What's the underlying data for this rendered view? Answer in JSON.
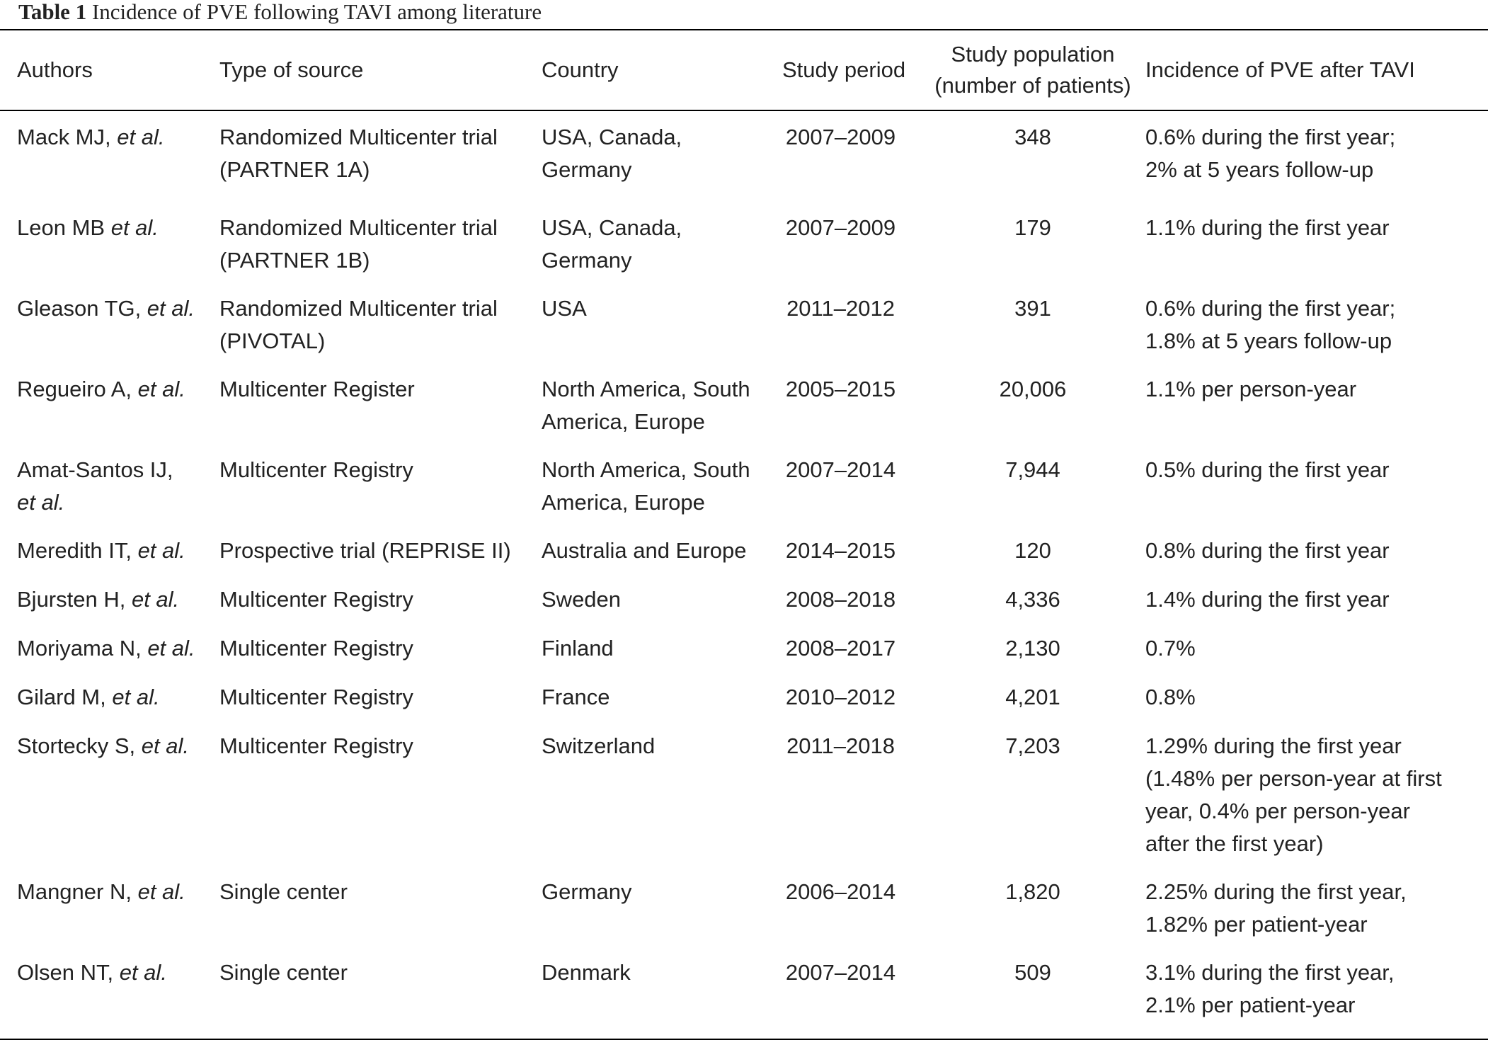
{
  "caption": {
    "label": "Table 1",
    "text": "Incidence of PVE following TAVI among literature"
  },
  "headers": {
    "authors": "Authors",
    "type": "Type of source",
    "country": "Country",
    "period": "Study period",
    "population_line1": "Study population",
    "population_line2": "(number of patients)",
    "incidence": "Incidence of PVE after TAVI"
  },
  "rows": [
    {
      "author": "Mack MJ, ",
      "etal": "et al.",
      "type": [
        "Randomized Multicenter trial",
        "(PARTNER 1A)"
      ],
      "country": [
        "USA, Canada,",
        "Germany"
      ],
      "period": "2007–2009",
      "population": "348",
      "incidence": [
        "0.6% during the first year;",
        "2% at 5 years follow-up"
      ]
    },
    {
      "author": "Leon MB ",
      "etal": "et al.",
      "type": [
        "Randomized Multicenter trial",
        "(PARTNER 1B)"
      ],
      "country": [
        "USA, Canada,",
        "Germany"
      ],
      "period": "2007–2009",
      "population": "179",
      "incidence": [
        "1.1% during the first year"
      ]
    },
    {
      "author": "Gleason TG, ",
      "etal": "et al.",
      "type": [
        "Randomized Multicenter trial",
        "(PIVOTAL)"
      ],
      "country": [
        "USA"
      ],
      "period": "2011–2012",
      "population": "391",
      "incidence": [
        "0.6% during the first year;",
        "1.8% at 5 years follow-up"
      ]
    },
    {
      "author": "Regueiro A, ",
      "etal": "et al.",
      "type": [
        "Multicenter Register"
      ],
      "country": [
        "North America, South",
        "America, Europe"
      ],
      "period": "2005–2015",
      "population": "20,006",
      "incidence": [
        "1.1% per person-year"
      ]
    },
    {
      "author": "Amat-Santos IJ,",
      "etal": "et al.",
      "author_break": true,
      "type": [
        "Multicenter Registry"
      ],
      "country": [
        "North America, South",
        "America, Europe"
      ],
      "period": "2007–2014",
      "population": "7,944",
      "incidence": [
        "0.5% during the first year"
      ]
    },
    {
      "author": "Meredith IT, ",
      "etal": "et al.",
      "type": [
        "Prospective trial (REPRISE II)"
      ],
      "country": [
        "Australia and Europe"
      ],
      "period": "2014–2015",
      "population": "120",
      "incidence": [
        "0.8% during the first year"
      ]
    },
    {
      "author": "Bjursten H, ",
      "etal": "et al.",
      "type": [
        "Multicenter Registry"
      ],
      "country": [
        "Sweden"
      ],
      "period": "2008–2018",
      "population": "4,336",
      "incidence": [
        "1.4% during the first year"
      ]
    },
    {
      "author": "Moriyama N, ",
      "etal": "et al.",
      "type": [
        "Multicenter Registry"
      ],
      "country": [
        "Finland"
      ],
      "period": "2008–2017",
      "population": "2,130",
      "incidence": [
        "0.7%"
      ]
    },
    {
      "author": "Gilard M, ",
      "etal": "et al.",
      "type": [
        "Multicenter Registry"
      ],
      "country": [
        "France"
      ],
      "period": "2010–2012",
      "population": "4,201",
      "incidence": [
        "0.8%"
      ]
    },
    {
      "author": "Stortecky S, ",
      "etal": "et al.",
      "type": [
        "Multicenter Registry"
      ],
      "country": [
        "Switzerland"
      ],
      "period": "2011–2018",
      "population": "7,203",
      "incidence": [
        "1.29% during the first year",
        "(1.48% per person-year at first",
        "year, 0.4% per person-year",
        "after the first year)"
      ]
    },
    {
      "author": "Mangner N, ",
      "etal": "et al.",
      "type": [
        "Single center"
      ],
      "country": [
        "Germany"
      ],
      "period": "2006–2014",
      "population": "1,820",
      "incidence": [
        "2.25% during the first year,",
        "1.82% per patient-year"
      ]
    },
    {
      "author": "Olsen NT, ",
      "etal": "et al.",
      "type": [
        "Single center"
      ],
      "country": [
        "Denmark"
      ],
      "period": "2007–2014",
      "population": "509",
      "incidence": [
        "3.1% during the first year,",
        "2.1% per patient-year"
      ]
    }
  ]
}
